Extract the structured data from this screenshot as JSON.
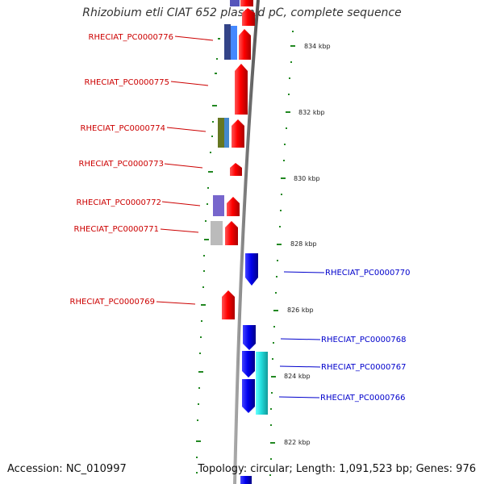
{
  "title": "Rhizobium etli CIAT 652 plasmid pC, complete sequence",
  "accession": "Accession: NC_010997",
  "topology": "Topology: circular; Length: 1,091,523 bp; Genes: 976",
  "scale_labels": [
    "834 kbp",
    "832 kbp",
    "830 kbp",
    "828 kbp",
    "826 kbp",
    "824 kbp",
    "822 kbp"
  ],
  "left_genes": [
    "RHECIAT_PC0000776",
    "RHECIAT_PC0000775",
    "RHECIAT_PC0000774",
    "RHECIAT_PC0000773",
    "RHECIAT_PC0000772",
    "RHECIAT_PC0000771",
    "RHECIAT_PC0000769"
  ],
  "right_genes": [
    "RHECIAT_PC0000770",
    "RHECIAT_PC0000768",
    "RHECIAT_PC0000767",
    "RHECIAT_PC0000766"
  ],
  "colors": {
    "forward": "#ff0000",
    "reverse": "#0000ee",
    "left_label": "#cc0000",
    "right_label": "#0000cc",
    "ticks": "#228822",
    "backbone": "#888888"
  }
}
